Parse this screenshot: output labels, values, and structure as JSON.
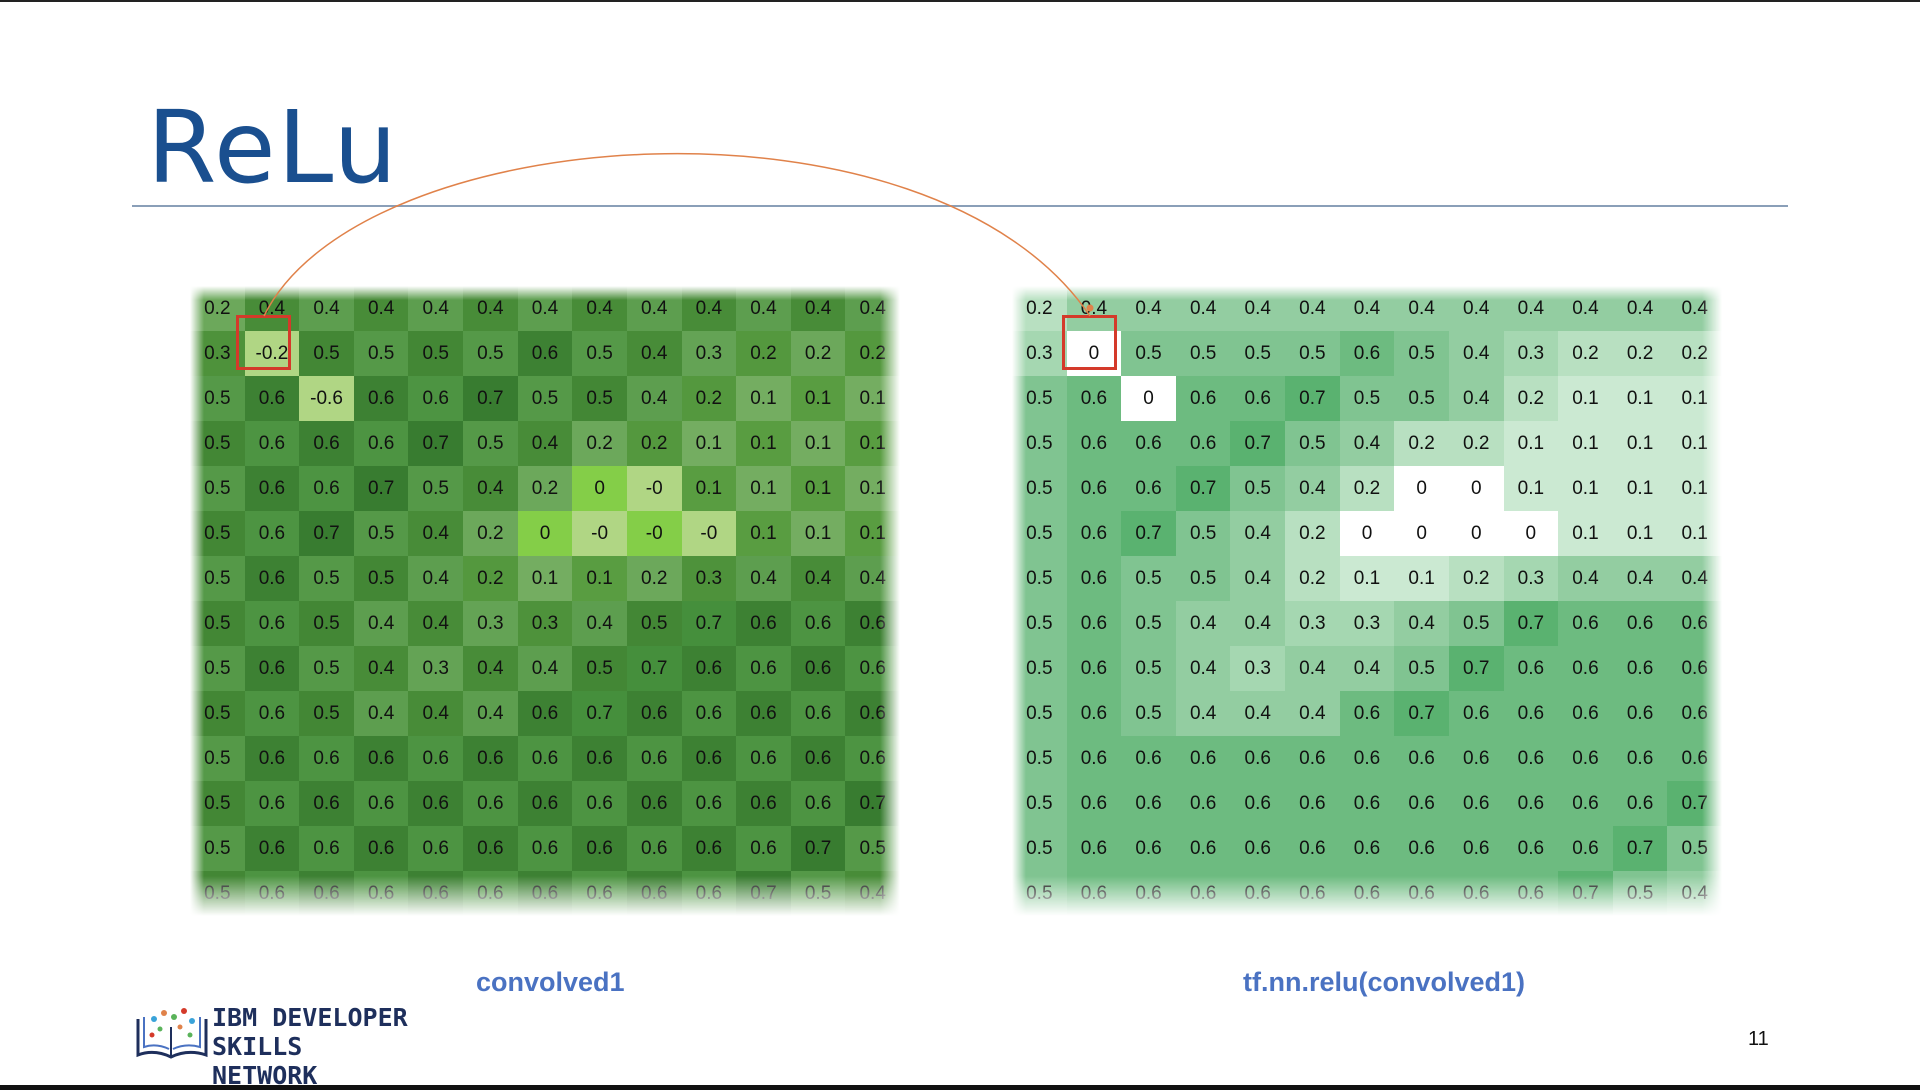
{
  "slide": {
    "title": "ReLu",
    "page_number": "11",
    "logo_line1": "IBM DEVELOPER",
    "logo_line2": "SKILLS NETWORK",
    "arc_color": "#e0824a",
    "highlight_color": "#d43a2a",
    "caption_color": "#4a72c2",
    "title_color": "#1a4f8f"
  },
  "left_matrix": {
    "caption": "convolved1",
    "highlighted_cell": [
      1,
      1
    ],
    "rows": [
      [
        "0.2",
        "0.4",
        "0.4",
        "0.4",
        "0.4",
        "0.4",
        "0.4",
        "0.4",
        "0.4",
        "0.4",
        "0.4",
        "0.4",
        "0.4"
      ],
      [
        "0.3",
        "-0.2",
        "0.5",
        "0.5",
        "0.5",
        "0.5",
        "0.6",
        "0.5",
        "0.4",
        "0.3",
        "0.2",
        "0.2",
        "0.2"
      ],
      [
        "0.5",
        "0.6",
        "-0.6",
        "0.6",
        "0.6",
        "0.7",
        "0.5",
        "0.5",
        "0.4",
        "0.2",
        "0.1",
        "0.1",
        "0.1"
      ],
      [
        "0.5",
        "0.6",
        "0.6",
        "0.6",
        "0.7",
        "0.5",
        "0.4",
        "0.2",
        "0.2",
        "0.1",
        "0.1",
        "0.1",
        "0.1"
      ],
      [
        "0.5",
        "0.6",
        "0.6",
        "0.7",
        "0.5",
        "0.4",
        "0.2",
        "0",
        "-0",
        "0.1",
        "0.1",
        "0.1",
        "0.1"
      ],
      [
        "0.5",
        "0.6",
        "0.7",
        "0.5",
        "0.4",
        "0.2",
        "0",
        "-0",
        "-0",
        "-0",
        "0.1",
        "0.1",
        "0.1"
      ],
      [
        "0.5",
        "0.6",
        "0.5",
        "0.5",
        "0.4",
        "0.2",
        "0.1",
        "0.1",
        "0.2",
        "0.3",
        "0.4",
        "0.4",
        "0.4"
      ],
      [
        "0.5",
        "0.6",
        "0.5",
        "0.4",
        "0.4",
        "0.3",
        "0.3",
        "0.4",
        "0.5",
        "0.7",
        "0.6",
        "0.6",
        "0.6"
      ],
      [
        "0.5",
        "0.6",
        "0.5",
        "0.4",
        "0.3",
        "0.4",
        "0.4",
        "0.5",
        "0.7",
        "0.6",
        "0.6",
        "0.6",
        "0.6"
      ],
      [
        "0.5",
        "0.6",
        "0.5",
        "0.4",
        "0.4",
        "0.4",
        "0.6",
        "0.7",
        "0.6",
        "0.6",
        "0.6",
        "0.6",
        "0.6"
      ],
      [
        "0.5",
        "0.6",
        "0.6",
        "0.6",
        "0.6",
        "0.6",
        "0.6",
        "0.6",
        "0.6",
        "0.6",
        "0.6",
        "0.6",
        "0.6"
      ],
      [
        "0.5",
        "0.6",
        "0.6",
        "0.6",
        "0.6",
        "0.6",
        "0.6",
        "0.6",
        "0.6",
        "0.6",
        "0.6",
        "0.6",
        "0.7"
      ],
      [
        "0.5",
        "0.6",
        "0.6",
        "0.6",
        "0.6",
        "0.6",
        "0.6",
        "0.6",
        "0.6",
        "0.6",
        "0.6",
        "0.7",
        "0.5"
      ],
      [
        "0.5",
        "0.6",
        "0.6",
        "0.6",
        "0.6",
        "0.6",
        "0.6",
        "0.6",
        "0.6",
        "0.6",
        "0.7",
        "0.5",
        "0.4"
      ]
    ]
  },
  "right_matrix": {
    "caption": "tf.nn.relu(convolved1)",
    "highlighted_cell": [
      1,
      1
    ],
    "rows": [
      [
        "0.2",
        "0.4",
        "0.4",
        "0.4",
        "0.4",
        "0.4",
        "0.4",
        "0.4",
        "0.4",
        "0.4",
        "0.4",
        "0.4",
        "0.4"
      ],
      [
        "0.3",
        "0",
        "0.5",
        "0.5",
        "0.5",
        "0.5",
        "0.6",
        "0.5",
        "0.4",
        "0.3",
        "0.2",
        "0.2",
        "0.2"
      ],
      [
        "0.5",
        "0.6",
        "0",
        "0.6",
        "0.6",
        "0.7",
        "0.5",
        "0.5",
        "0.4",
        "0.2",
        "0.1",
        "0.1",
        "0.1"
      ],
      [
        "0.5",
        "0.6",
        "0.6",
        "0.6",
        "0.7",
        "0.5",
        "0.4",
        "0.2",
        "0.2",
        "0.1",
        "0.1",
        "0.1",
        "0.1"
      ],
      [
        "0.5",
        "0.6",
        "0.6",
        "0.7",
        "0.5",
        "0.4",
        "0.2",
        "0",
        "0",
        "0.1",
        "0.1",
        "0.1",
        "0.1"
      ],
      [
        "0.5",
        "0.6",
        "0.7",
        "0.5",
        "0.4",
        "0.2",
        "0",
        "0",
        "0",
        "0",
        "0.1",
        "0.1",
        "0.1"
      ],
      [
        "0.5",
        "0.6",
        "0.5",
        "0.5",
        "0.4",
        "0.2",
        "0.1",
        "0.1",
        "0.2",
        "0.3",
        "0.4",
        "0.4",
        "0.4"
      ],
      [
        "0.5",
        "0.6",
        "0.5",
        "0.4",
        "0.4",
        "0.3",
        "0.3",
        "0.4",
        "0.5",
        "0.7",
        "0.6",
        "0.6",
        "0.6"
      ],
      [
        "0.5",
        "0.6",
        "0.5",
        "0.4",
        "0.3",
        "0.4",
        "0.4",
        "0.5",
        "0.7",
        "0.6",
        "0.6",
        "0.6",
        "0.6"
      ],
      [
        "0.5",
        "0.6",
        "0.5",
        "0.4",
        "0.4",
        "0.4",
        "0.6",
        "0.7",
        "0.6",
        "0.6",
        "0.6",
        "0.6",
        "0.6"
      ],
      [
        "0.5",
        "0.6",
        "0.6",
        "0.6",
        "0.6",
        "0.6",
        "0.6",
        "0.6",
        "0.6",
        "0.6",
        "0.6",
        "0.6",
        "0.6"
      ],
      [
        "0.5",
        "0.6",
        "0.6",
        "0.6",
        "0.6",
        "0.6",
        "0.6",
        "0.6",
        "0.6",
        "0.6",
        "0.6",
        "0.6",
        "0.7"
      ],
      [
        "0.5",
        "0.6",
        "0.6",
        "0.6",
        "0.6",
        "0.6",
        "0.6",
        "0.6",
        "0.6",
        "0.6",
        "0.6",
        "0.7",
        "0.5"
      ],
      [
        "0.5",
        "0.6",
        "0.6",
        "0.6",
        "0.6",
        "0.6",
        "0.6",
        "0.6",
        "0.6",
        "0.6",
        "0.7",
        "0.5",
        "0.4"
      ]
    ]
  }
}
